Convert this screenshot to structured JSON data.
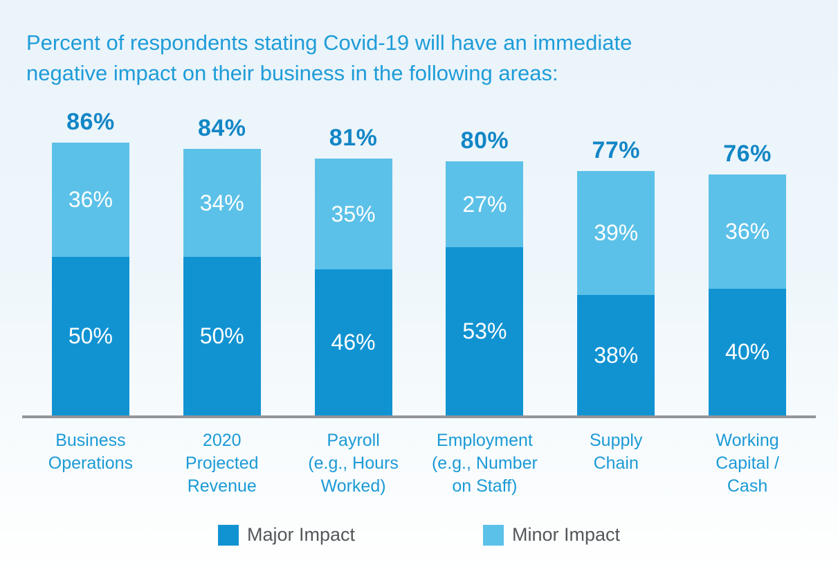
{
  "title": {
    "line1": "Percent of respondents stating Covid-19 will have an immediate",
    "line2": "negative impact on their business in the following areas:"
  },
  "chart_data": {
    "type": "bar",
    "stacked": true,
    "title": "Percent of respondents stating Covid-19 will have an immediate negative impact on their business in the following areas:",
    "categories": [
      "Business Operations",
      "2020 Projected Revenue",
      "Payroll (e.g., Hours Worked)",
      "Employment (e.g., Number on Staff)",
      "Supply Chain",
      "Working Capital / Cash"
    ],
    "series": [
      {
        "name": "Major Impact",
        "color": "#1193d2",
        "values": [
          50,
          50,
          46,
          53,
          38,
          40
        ]
      },
      {
        "name": "Minor Impact",
        "color": "#5cc1e8",
        "values": [
          36,
          34,
          35,
          27,
          39,
          36
        ]
      }
    ],
    "totals": [
      86,
      84,
      81,
      80,
      77,
      76
    ],
    "xlabel": "",
    "ylabel": "",
    "ylim": [
      0,
      100
    ],
    "grid": false,
    "legend_position": "bottom"
  },
  "bars": [
    {
      "total": "86%",
      "minor": "36%",
      "major": "50%",
      "category_lines": [
        "Business",
        "Operations"
      ]
    },
    {
      "total": "84%",
      "minor": "34%",
      "major": "50%",
      "category_lines": [
        "2020",
        "Projected",
        "Revenue"
      ]
    },
    {
      "total": "81%",
      "minor": "35%",
      "major": "46%",
      "category_lines": [
        "Payroll",
        "(e.g., Hours",
        "Worked)"
      ]
    },
    {
      "total": "80%",
      "minor": "27%",
      "major": "53%",
      "category_lines": [
        "Employment",
        "(e.g., Number",
        "on Staff)"
      ]
    },
    {
      "total": "77%",
      "minor": "39%",
      "major": "38%",
      "category_lines": [
        "Supply",
        "Chain"
      ]
    },
    {
      "total": "76%",
      "minor": "36%",
      "major": "40%",
      "category_lines": [
        "Working",
        "Capital /",
        "Cash"
      ]
    }
  ],
  "legend": [
    {
      "label": "Major Impact",
      "color": "#1193d2"
    },
    {
      "label": "Minor Impact",
      "color": "#5cc1e8"
    }
  ],
  "colors": {
    "title_text": "#1e9cd8",
    "total_text": "#1286c6",
    "category_text": "#1b9ad6",
    "axis_line": "#939598",
    "legend_text": "#54565a"
  }
}
